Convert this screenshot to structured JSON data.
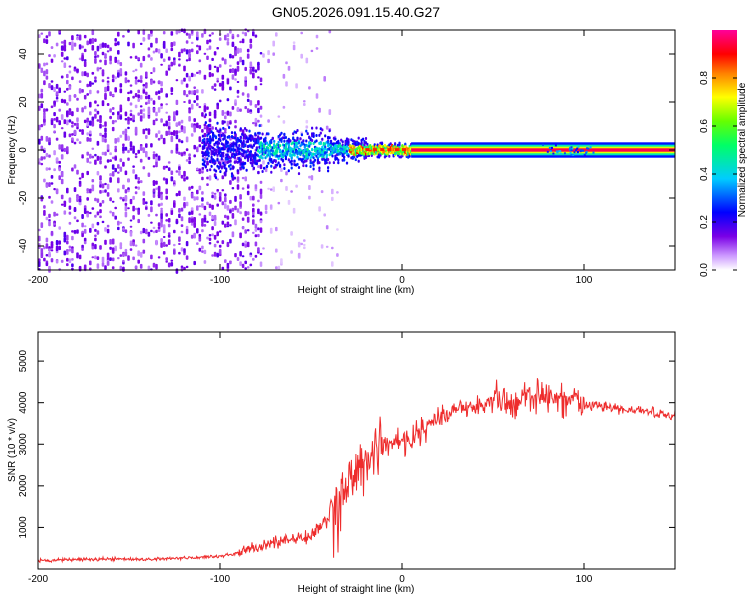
{
  "title": "GN05.2026.091.15.40.G27",
  "chart_data": [
    {
      "type": "heatmap",
      "xlabel": "Height of straight line (km)",
      "ylabel": "Frequency (Hz)",
      "xlim": [
        -200,
        150
      ],
      "ylim": [
        -50,
        50
      ],
      "x_ticks": [
        -200,
        -100,
        0,
        100
      ],
      "y_ticks": [
        -40,
        -20,
        0,
        20,
        40
      ],
      "colorbar": {
        "label": "Normalized spectral amplitude",
        "range": [
          0,
          1
        ],
        "ticks": [
          0.0,
          0.2,
          0.4,
          0.6,
          0.8
        ],
        "colormap": "rainbow: white to purple to blue to cyan to green to yellow to red to magenta"
      },
      "features": {
        "noise_region_x": [
          -200,
          -35
        ],
        "dense_noise_x": [
          -200,
          -78
        ],
        "signal_line_frequency_hz": 0,
        "strong_signal_x": [
          5,
          150
        ],
        "strong_signal_amplitude": 0.95
      }
    },
    {
      "type": "line",
      "xlabel": "Height of straight line (km)",
      "ylabel": "SNR (10 * v/v)",
      "xlim": [
        -200,
        150
      ],
      "ylim": [
        0,
        5700
      ],
      "x_ticks": [
        -200,
        -100,
        0,
        100
      ],
      "y_ticks": [
        1000,
        2000,
        3000,
        4000,
        5000
      ],
      "series_color": "#ee2c2c",
      "series": [
        {
          "x": [
            -200,
            -180,
            -160,
            -140,
            -120,
            -100,
            -90,
            -80,
            -70,
            -60,
            -50,
            -40,
            -30,
            -20,
            -10,
            0,
            10,
            20,
            30,
            40,
            50,
            60,
            70,
            80,
            90,
            100,
            110,
            120,
            130,
            140,
            150
          ],
          "values": [
            200,
            230,
            240,
            240,
            260,
            300,
            380,
            520,
            650,
            700,
            820,
            1200,
            1900,
            2700,
            2950,
            3050,
            3300,
            3600,
            3850,
            3950,
            4050,
            4000,
            4100,
            4150,
            4050,
            3950,
            3900,
            3850,
            3800,
            3750,
            3650
          ]
        }
      ]
    }
  ]
}
